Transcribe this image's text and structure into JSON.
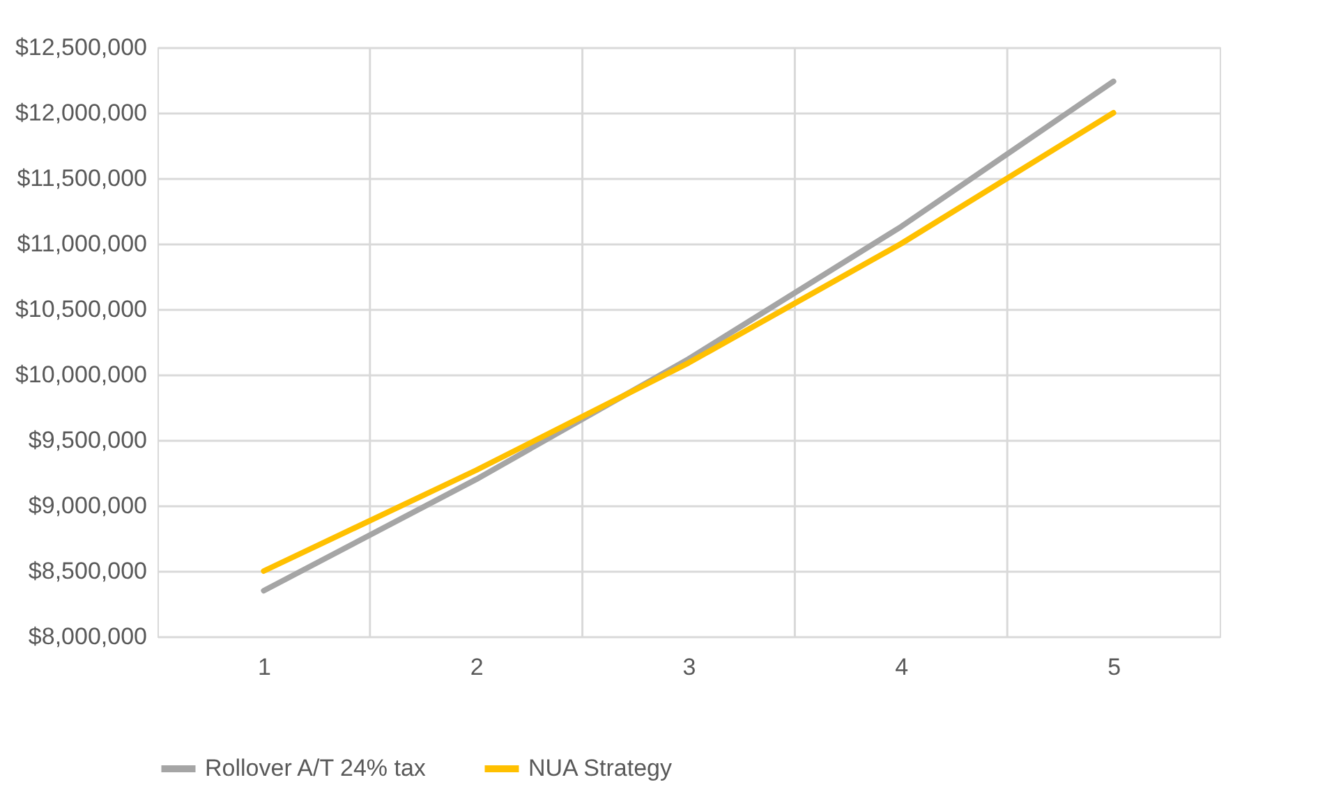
{
  "chart_data": {
    "type": "line",
    "categories": [
      "1",
      "2",
      "3",
      "4",
      "5"
    ],
    "series": [
      {
        "name": "Rollover A/T 24% tax",
        "color": "#a5a5a5",
        "values": [
          8350000,
          9200000,
          10120000,
          11130000,
          12240000
        ]
      },
      {
        "name": "NUA Strategy",
        "color": "#ffc000",
        "values": [
          8500000,
          9270000,
          10090000,
          11000000,
          12000000
        ]
      }
    ],
    "ylim": [
      8000000,
      12500000
    ],
    "yticks": [
      {
        "value": 8000000,
        "label": "$8,000,000"
      },
      {
        "value": 8500000,
        "label": "$8,500,000"
      },
      {
        "value": 9000000,
        "label": "$9,000,000"
      },
      {
        "value": 9500000,
        "label": "$9,500,000"
      },
      {
        "value": 10000000,
        "label": "$10,000,000"
      },
      {
        "value": 10500000,
        "label": "$10,500,000"
      },
      {
        "value": 11000000,
        "label": "$11,000,000"
      },
      {
        "value": 11500000,
        "label": "$11,500,000"
      },
      {
        "value": 12000000,
        "label": "$12,000,000"
      },
      {
        "value": 12500000,
        "label": "$12,500,000"
      }
    ],
    "grid": true,
    "legend": "bottom",
    "marker": "none",
    "line_style": "solid"
  }
}
